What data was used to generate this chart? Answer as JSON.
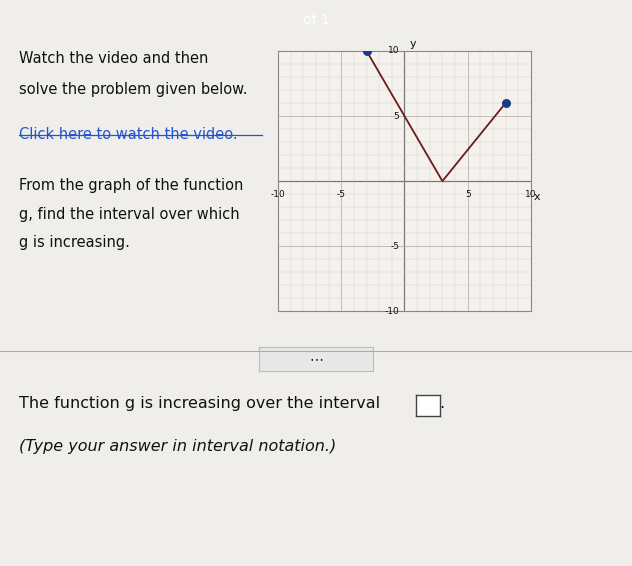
{
  "title_lines": [
    "Watch the video and then",
    "solve the problem given below."
  ],
  "link_text": "Click here to watch the video.",
  "description_lines": [
    "From the graph of the function",
    "g, find the interval over which",
    "g is increasing."
  ],
  "bottom_text_line1": "The function g is increasing over the interval",
  "bottom_text_line2": "(Type your answer in interval notation.)",
  "graph": {
    "xlim": [
      -10,
      10
    ],
    "ylim": [
      -10,
      10
    ],
    "xtick_vals": [
      -10,
      -5,
      5,
      10
    ],
    "ytick_vals": [
      -10,
      -5,
      5,
      10
    ],
    "minor_step": 1,
    "xlabel": "x",
    "ylabel": "y",
    "points": [
      [
        -3,
        10
      ],
      [
        3,
        0
      ],
      [
        8,
        6
      ]
    ],
    "line_color": "#6b1a1a",
    "dot_color": "#1a3a8a",
    "dot_size": 30
  },
  "header_color": "#5b9bd5",
  "page_background": "#f0eeea",
  "graph_bg": "#f5f2ed",
  "graph_border": "#888888",
  "grid_major_color": "#aaaaaa",
  "grid_minor_color": "#cccccc",
  "text_color": "#111111",
  "link_color": "#2255cc",
  "separator_color": "#aaaaaa",
  "dots_button_bg": "#e8e8e8",
  "dots_button_border": "#bbbbbb"
}
